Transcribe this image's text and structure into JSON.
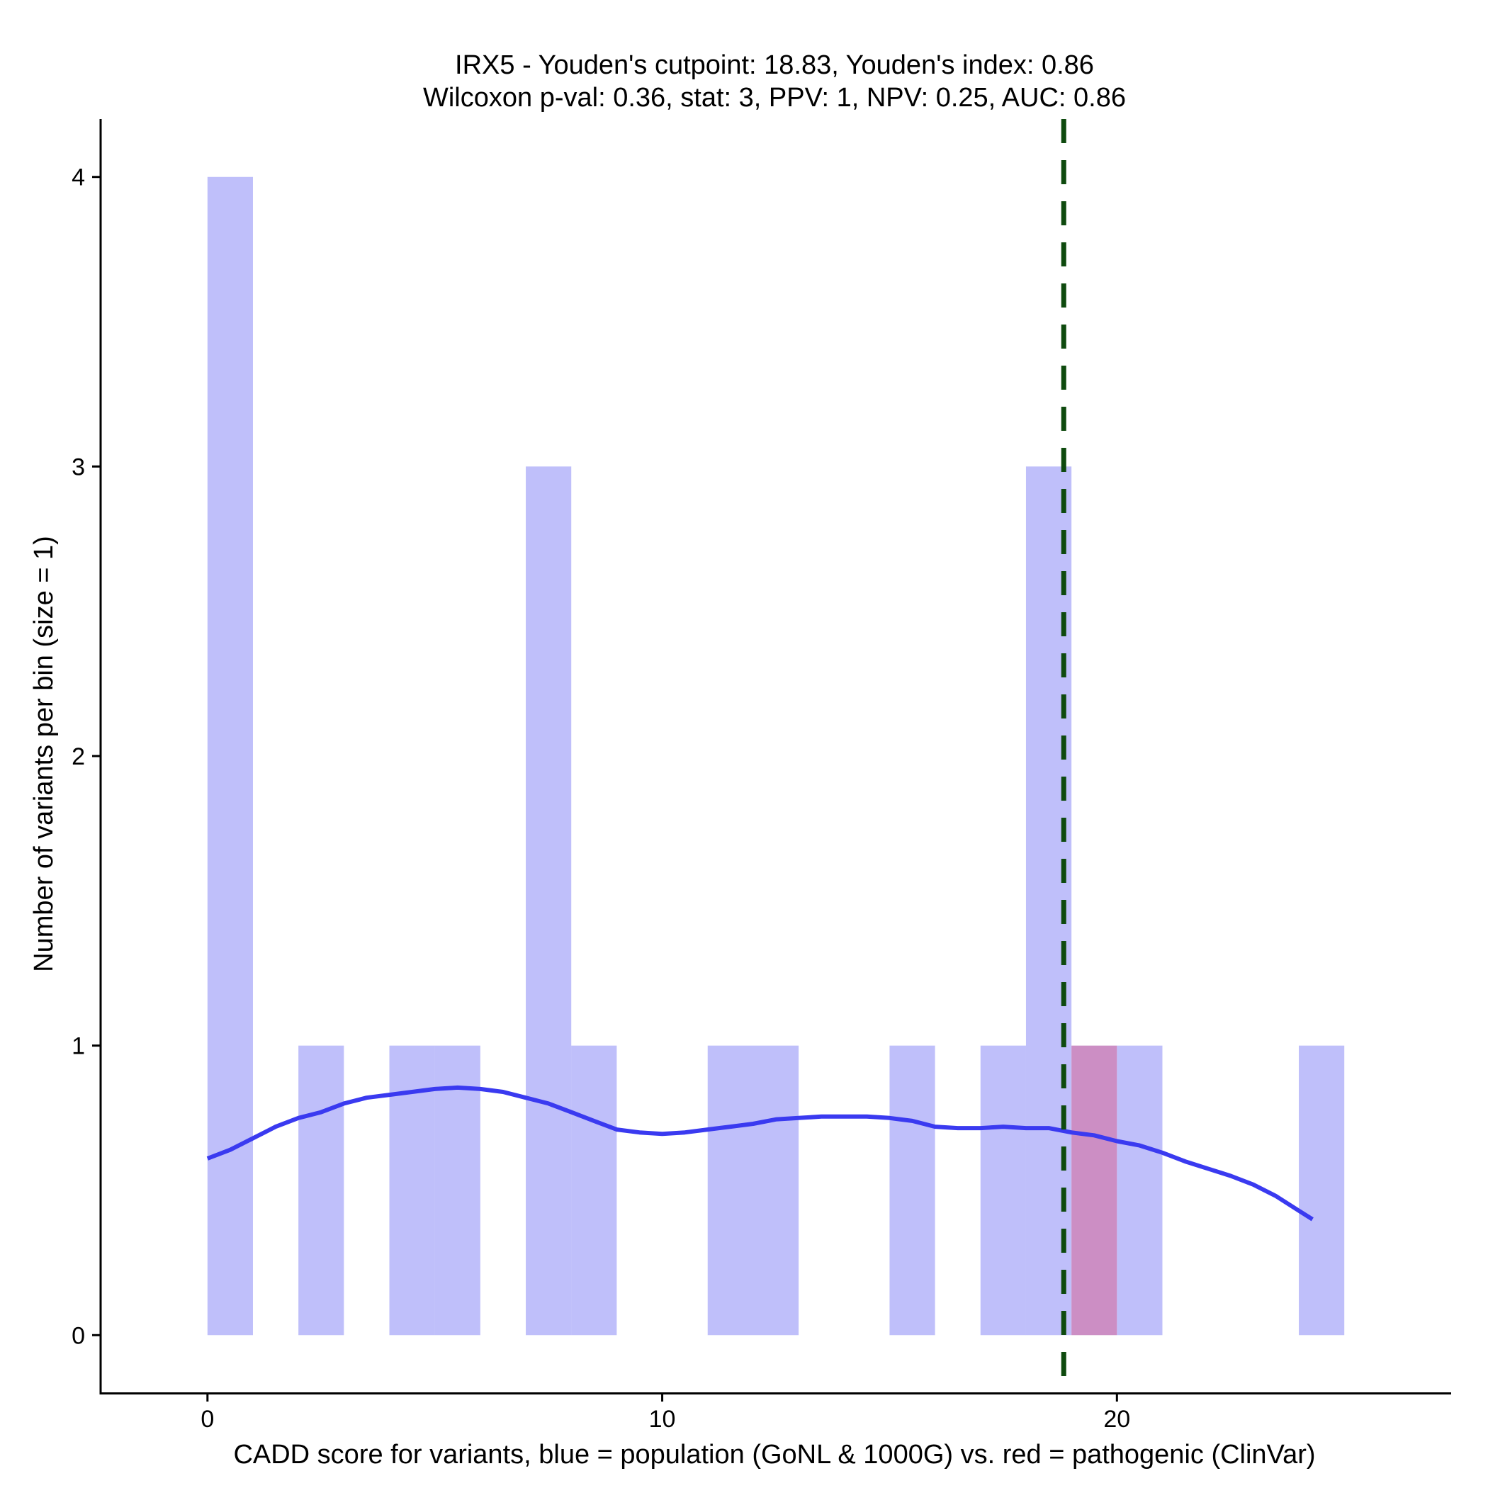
{
  "chart_data": {
    "type": "histogram",
    "title_line1": "IRX5 - Youden's cutpoint: 18.83, Youden's index: 0.86",
    "title_line2": "Wilcoxon p-val: 0.36, stat: 3, PPV: 1, NPV: 0.25, AUC: 0.86",
    "xlabel": "CADD score for variants, blue = population (GoNL & 1000G) vs. red = pathogenic (ClinVar)",
    "ylabel": "Number of variants per bin (size = 1)",
    "xlim": [
      -2.35,
      27.35
    ],
    "ylim": [
      -0.2,
      4.2
    ],
    "x_ticks": [
      0,
      10,
      20
    ],
    "x_tick_labels": [
      "0",
      "10",
      "20"
    ],
    "y_ticks": [
      0,
      1,
      2,
      3,
      4
    ],
    "y_tick_labels": [
      "0",
      "1",
      "2",
      "3",
      "4"
    ],
    "bin_size": 1,
    "series": [
      {
        "name": "population (GoNL & 1000G)",
        "color": "#8080f5",
        "opacity": 0.5,
        "bins": [
          {
            "start": 0,
            "count": 4
          },
          {
            "start": 2,
            "count": 1
          },
          {
            "start": 4,
            "count": 1
          },
          {
            "start": 5,
            "count": 1
          },
          {
            "start": 7,
            "count": 3
          },
          {
            "start": 8,
            "count": 1
          },
          {
            "start": 11,
            "count": 1
          },
          {
            "start": 12,
            "count": 1
          },
          {
            "start": 15,
            "count": 1
          },
          {
            "start": 17,
            "count": 1
          },
          {
            "start": 18,
            "count": 3
          },
          {
            "start": 20,
            "count": 1
          },
          {
            "start": 24,
            "count": 1
          }
        ]
      },
      {
        "name": "pathogenic (ClinVar)",
        "color": "#cc8ec4",
        "opacity": 1,
        "bins": [
          {
            "start": 19,
            "count": 1
          }
        ]
      }
    ],
    "density_curve": {
      "color": "#3a3af0",
      "x": [
        0,
        0.5,
        1,
        1.5,
        2,
        2.5,
        3,
        3.5,
        4,
        4.5,
        5,
        5.5,
        6,
        6.5,
        7,
        7.5,
        8,
        8.5,
        9,
        9.5,
        10,
        10.5,
        11,
        11.5,
        12,
        12.5,
        13,
        13.5,
        14,
        14.5,
        15,
        15.5,
        16,
        16.5,
        17,
        17.5,
        18,
        18.5,
        19,
        19.5,
        20,
        20.5,
        21,
        21.5,
        22,
        22.5,
        23,
        23.5,
        24,
        24.3
      ],
      "y": [
        0.61,
        0.64,
        0.68,
        0.72,
        0.75,
        0.77,
        0.8,
        0.82,
        0.83,
        0.84,
        0.85,
        0.855,
        0.85,
        0.84,
        0.82,
        0.8,
        0.77,
        0.74,
        0.71,
        0.7,
        0.695,
        0.7,
        0.71,
        0.72,
        0.73,
        0.745,
        0.75,
        0.755,
        0.755,
        0.755,
        0.75,
        0.74,
        0.72,
        0.715,
        0.715,
        0.72,
        0.715,
        0.715,
        0.7,
        0.69,
        0.67,
        0.655,
        0.63,
        0.6,
        0.575,
        0.55,
        0.52,
        0.48,
        0.43,
        0.4
      ]
    },
    "cutpoint": {
      "value": 18.83,
      "color": "#0e4a0e",
      "style": "dashed"
    }
  }
}
